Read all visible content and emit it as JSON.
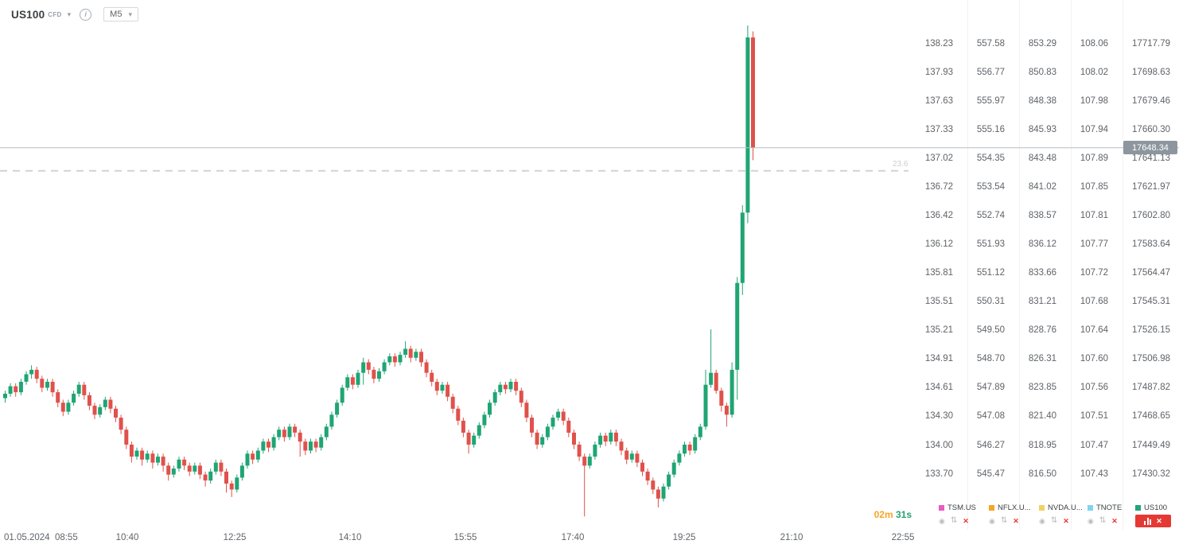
{
  "header": {
    "symbol": "US100",
    "instrument_type": "CFD",
    "timeframe": "M5"
  },
  "price_badge": {
    "value": "17648.34"
  },
  "timer": {
    "minutes": "02m",
    "seconds": "31s"
  },
  "time_axis": {
    "labels": [
      "01.05.2024  08:55",
      "10:40",
      "12:25",
      "14:10",
      "15:55",
      "17:40",
      "19:25",
      "21:10",
      "22:55"
    ]
  },
  "price_scale": {
    "columns": [
      {
        "instrument": "TSM.US",
        "values": [
          "138.23",
          "137.93",
          "137.63",
          "137.33",
          "137.02",
          "136.72",
          "136.42",
          "136.12",
          "135.81",
          "135.51",
          "135.21",
          "134.91",
          "134.61",
          "134.30",
          "134.00",
          "133.70"
        ]
      },
      {
        "instrument": "NFLX.US",
        "values": [
          "557.58",
          "556.77",
          "555.97",
          "555.16",
          "554.35",
          "553.54",
          "552.74",
          "551.93",
          "551.12",
          "550.31",
          "549.50",
          "548.70",
          "547.89",
          "547.08",
          "546.27",
          "545.47"
        ]
      },
      {
        "instrument": "NVDA.US",
        "values": [
          "853.29",
          "850.83",
          "848.38",
          "845.93",
          "843.48",
          "841.02",
          "838.57",
          "836.12",
          "833.66",
          "831.21",
          "828.76",
          "826.31",
          "823.85",
          "821.40",
          "818.95",
          "816.50"
        ]
      },
      {
        "instrument": "TNOTE",
        "values": [
          "108.06",
          "108.02",
          "107.98",
          "107.94",
          "107.89",
          "107.85",
          "107.81",
          "107.77",
          "107.72",
          "107.68",
          "107.64",
          "107.60",
          "107.56",
          "107.51",
          "107.47",
          "107.43"
        ]
      },
      {
        "instrument": "US100",
        "values": [
          "17717.79",
          "17698.63",
          "17679.46",
          "17660.30",
          "17641.13",
          "17621.97",
          "17602.80",
          "17583.64",
          "17564.47",
          "17545.31",
          "17526.15",
          "17506.98",
          "17487.82",
          "17468.65",
          "17449.49",
          "17430.32"
        ]
      }
    ]
  },
  "watchlist_tabs": [
    {
      "label": "TSM.US",
      "color": "#e85bc3",
      "active": false
    },
    {
      "label": "NFLX.U...",
      "color": "#f5a623",
      "active": false
    },
    {
      "label": "NVDA.U...",
      "color": "#f0d264",
      "active": false
    },
    {
      "label": "TNOTE",
      "color": "#7fd4f0",
      "active": false
    },
    {
      "label": "US100",
      "color": "#1fa67d",
      "active": true
    }
  ],
  "colors": {
    "candle_up": "#1fa573",
    "candle_down": "#e0514b",
    "current_price_line": "#b8bec4",
    "fib_line": "#d2d2d2",
    "badge_bg": "#8d969e"
  },
  "chart_data": {
    "type": "candlestick",
    "symbol": "US100",
    "timeframe": "M5",
    "date": "01.05.2024",
    "current_price": 17648.34,
    "fib_level": {
      "label": "23.6",
      "price": 17632.9
    },
    "price_axis": {
      "top_label": 17717.79,
      "bottom_label": 17430.32,
      "label_step": 19.165
    },
    "candles": [
      [
        17481,
        17486,
        17478,
        17484
      ],
      [
        17484,
        17491,
        17482,
        17489
      ],
      [
        17489,
        17491,
        17482,
        17485
      ],
      [
        17485,
        17494,
        17483,
        17492
      ],
      [
        17492,
        17499,
        17490,
        17497
      ],
      [
        17497,
        17503,
        17494,
        17500
      ],
      [
        17500,
        17502,
        17491,
        17494
      ],
      [
        17494,
        17496,
        17485,
        17488
      ],
      [
        17488,
        17494,
        17486,
        17492
      ],
      [
        17492,
        17494,
        17482,
        17485
      ],
      [
        17485,
        17487,
        17475,
        17478
      ],
      [
        17478,
        17480,
        17469,
        17472
      ],
      [
        17472,
        17480,
        17470,
        17478
      ],
      [
        17478,
        17486,
        17476,
        17484
      ],
      [
        17484,
        17492,
        17482,
        17490
      ],
      [
        17490,
        17492,
        17480,
        17483
      ],
      [
        17483,
        17485,
        17473,
        17476
      ],
      [
        17476,
        17478,
        17467,
        17470
      ],
      [
        17470,
        17477,
        17468,
        17475
      ],
      [
        17475,
        17482,
        17473,
        17480
      ],
      [
        17480,
        17482,
        17471,
        17474
      ],
      [
        17474,
        17476,
        17465,
        17468
      ],
      [
        17468,
        17470,
        17457,
        17460
      ],
      [
        17460,
        17462,
        17447,
        17450
      ],
      [
        17450,
        17452,
        17438,
        17442
      ],
      [
        17442,
        17448,
        17440,
        17446
      ],
      [
        17446,
        17448,
        17436,
        17440
      ],
      [
        17440,
        17446,
        17438,
        17444
      ],
      [
        17444,
        17446,
        17434,
        17438
      ],
      [
        17438,
        17444,
        17436,
        17442
      ],
      [
        17442,
        17444,
        17432,
        17436
      ],
      [
        17436,
        17438,
        17426,
        17430
      ],
      [
        17430,
        17436,
        17428,
        17434
      ],
      [
        17434,
        17442,
        17432,
        17440
      ],
      [
        17440,
        17442,
        17433,
        17436
      ],
      [
        17436,
        17438,
        17429,
        17432
      ],
      [
        17432,
        17438,
        17430,
        17436
      ],
      [
        17436,
        17438,
        17427,
        17430
      ],
      [
        17430,
        17432,
        17422,
        17426
      ],
      [
        17426,
        17434,
        17424,
        17432
      ],
      [
        17432,
        17440,
        17430,
        17438
      ],
      [
        17438,
        17440,
        17429,
        17432
      ],
      [
        17432,
        17434,
        17418,
        17424
      ],
      [
        17424,
        17426,
        17415,
        17420
      ],
      [
        17420,
        17430,
        17418,
        17428
      ],
      [
        17428,
        17438,
        17426,
        17436
      ],
      [
        17436,
        17446,
        17434,
        17444
      ],
      [
        17444,
        17446,
        17437,
        17440
      ],
      [
        17440,
        17448,
        17438,
        17446
      ],
      [
        17446,
        17454,
        17444,
        17452
      ],
      [
        17452,
        17454,
        17445,
        17448
      ],
      [
        17448,
        17457,
        17446,
        17455
      ],
      [
        17455,
        17462,
        17453,
        17460
      ],
      [
        17460,
        17462,
        17452,
        17455
      ],
      [
        17455,
        17464,
        17453,
        17462
      ],
      [
        17462,
        17464,
        17455,
        17458
      ],
      [
        17458,
        17460,
        17442,
        17452
      ],
      [
        17452,
        17454,
        17443,
        17446
      ],
      [
        17446,
        17454,
        17444,
        17452
      ],
      [
        17452,
        17454,
        17445,
        17448
      ],
      [
        17448,
        17457,
        17446,
        17455
      ],
      [
        17455,
        17464,
        17453,
        17462
      ],
      [
        17462,
        17472,
        17460,
        17470
      ],
      [
        17470,
        17480,
        17468,
        17478
      ],
      [
        17478,
        17490,
        17476,
        17488
      ],
      [
        17488,
        17497,
        17486,
        17495
      ],
      [
        17495,
        17497,
        17487,
        17490
      ],
      [
        17490,
        17500,
        17488,
        17498
      ],
      [
        17498,
        17508,
        17490,
        17505
      ],
      [
        17505,
        17507,
        17497,
        17500
      ],
      [
        17500,
        17502,
        17491,
        17494
      ],
      [
        17494,
        17501,
        17492,
        17499
      ],
      [
        17499,
        17507,
        17497,
        17505
      ],
      [
        17505,
        17511,
        17503,
        17509
      ],
      [
        17509,
        17511,
        17502,
        17505
      ],
      [
        17505,
        17512,
        17503,
        17510
      ],
      [
        17510,
        17519,
        17508,
        17514
      ],
      [
        17514,
        17516,
        17505,
        17508
      ],
      [
        17508,
        17514,
        17506,
        17512
      ],
      [
        17512,
        17514,
        17502,
        17505
      ],
      [
        17505,
        17507,
        17495,
        17498
      ],
      [
        17498,
        17500,
        17489,
        17492
      ],
      [
        17492,
        17494,
        17483,
        17486
      ],
      [
        17486,
        17492,
        17484,
        17490
      ],
      [
        17490,
        17492,
        17479,
        17482
      ],
      [
        17482,
        17484,
        17471,
        17474
      ],
      [
        17474,
        17476,
        17463,
        17466
      ],
      [
        17466,
        17468,
        17455,
        17458
      ],
      [
        17458,
        17460,
        17444,
        17450
      ],
      [
        17450,
        17458,
        17448,
        17456
      ],
      [
        17456,
        17465,
        17454,
        17463
      ],
      [
        17463,
        17472,
        17461,
        17470
      ],
      [
        17470,
        17480,
        17468,
        17478
      ],
      [
        17478,
        17487,
        17476,
        17485
      ],
      [
        17485,
        17492,
        17483,
        17490
      ],
      [
        17490,
        17492,
        17484,
        17487
      ],
      [
        17487,
        17494,
        17485,
        17492
      ],
      [
        17492,
        17494,
        17483,
        17486
      ],
      [
        17486,
        17488,
        17475,
        17478
      ],
      [
        17478,
        17480,
        17465,
        17468
      ],
      [
        17468,
        17470,
        17455,
        17458
      ],
      [
        17458,
        17460,
        17447,
        17450
      ],
      [
        17450,
        17457,
        17448,
        17455
      ],
      [
        17455,
        17464,
        17453,
        17462
      ],
      [
        17462,
        17470,
        17460,
        17468
      ],
      [
        17468,
        17474,
        17466,
        17472
      ],
      [
        17472,
        17474,
        17463,
        17466
      ],
      [
        17466,
        17468,
        17455,
        17458
      ],
      [
        17458,
        17460,
        17447,
        17450
      ],
      [
        17450,
        17452,
        17439,
        17442
      ],
      [
        17442,
        17444,
        17402,
        17436
      ],
      [
        17436,
        17444,
        17434,
        17442
      ],
      [
        17442,
        17452,
        17440,
        17450
      ],
      [
        17450,
        17458,
        17448,
        17456
      ],
      [
        17456,
        17458,
        17449,
        17452
      ],
      [
        17452,
        17460,
        17450,
        17458
      ],
      [
        17458,
        17460,
        17449,
        17452
      ],
      [
        17452,
        17454,
        17443,
        17446
      ],
      [
        17446,
        17448,
        17437,
        17440
      ],
      [
        17440,
        17446,
        17438,
        17444
      ],
      [
        17444,
        17446,
        17435,
        17438
      ],
      [
        17438,
        17440,
        17429,
        17432
      ],
      [
        17432,
        17434,
        17423,
        17426
      ],
      [
        17426,
        17428,
        17417,
        17420
      ],
      [
        17420,
        17422,
        17408,
        17414
      ],
      [
        17414,
        17424,
        17412,
        17422
      ],
      [
        17422,
        17432,
        17420,
        17430
      ],
      [
        17430,
        17440,
        17428,
        17438
      ],
      [
        17438,
        17446,
        17436,
        17444
      ],
      [
        17444,
        17452,
        17442,
        17450
      ],
      [
        17450,
        17452,
        17443,
        17446
      ],
      [
        17446,
        17457,
        17444,
        17455
      ],
      [
        17455,
        17464,
        17453,
        17462
      ],
      [
        17462,
        17500,
        17460,
        17490
      ],
      [
        17490,
        17527,
        17488,
        17498
      ],
      [
        17498,
        17500,
        17484,
        17486
      ],
      [
        17486,
        17488,
        17472,
        17476
      ],
      [
        17476,
        17478,
        17462,
        17470
      ],
      [
        17470,
        17505,
        17468,
        17500
      ],
      [
        17500,
        17562,
        17480,
        17558
      ],
      [
        17558,
        17610,
        17550,
        17605
      ],
      [
        17605,
        17730,
        17598,
        17722
      ],
      [
        17722,
        17726,
        17640,
        17648.34
      ]
    ]
  }
}
